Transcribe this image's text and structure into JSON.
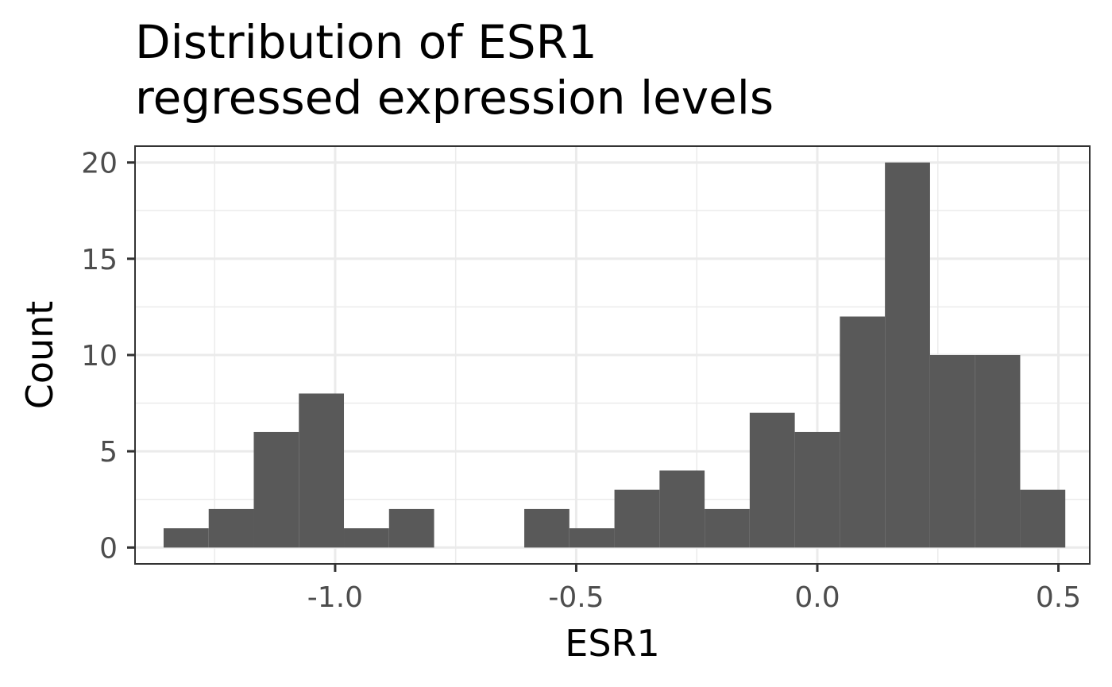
{
  "chart_data": {
    "type": "bar",
    "title_lines": [
      "Distribution of ESR1",
      "regressed expression levels"
    ],
    "xlabel": "ESR1",
    "ylabel": "Count",
    "xlim": [
      -1.415,
      0.565
    ],
    "ylim": [
      -0.85,
      20.85
    ],
    "xticks": [
      {
        "value": -1.0,
        "label": "-1.0"
      },
      {
        "value": -0.5,
        "label": "-0.5"
      },
      {
        "value": 0.0,
        "label": "0.0"
      },
      {
        "value": 0.5,
        "label": "0.5"
      }
    ],
    "yticks": [
      {
        "value": 0,
        "label": "0"
      },
      {
        "value": 5,
        "label": "5"
      },
      {
        "value": 10,
        "label": "10"
      },
      {
        "value": 15,
        "label": "15"
      },
      {
        "value": 20,
        "label": "20"
      }
    ],
    "bin_width": 0.0935,
    "bin_centers": [
      -1.309,
      -1.2155,
      -1.122,
      -1.0285,
      -0.935,
      -0.8415,
      -0.748,
      -0.6545,
      -0.561,
      -0.4675,
      -0.374,
      -0.2805,
      -0.187,
      -0.0935,
      0.0,
      0.0935,
      0.187,
      0.2805,
      0.374,
      0.4675
    ],
    "values": [
      1,
      2,
      6,
      8,
      1,
      2,
      0,
      0,
      2,
      1,
      3,
      4,
      2,
      7,
      6,
      12,
      20,
      10,
      10,
      3
    ],
    "bar_color": "#595959",
    "grid": true,
    "panel_border_color": "#333333",
    "grid_color": "#ebebeb"
  }
}
